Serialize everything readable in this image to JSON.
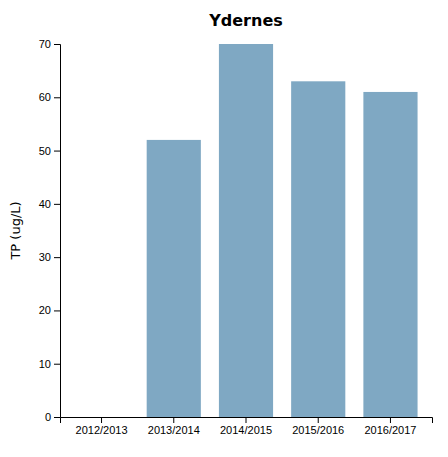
{
  "chart_data": {
    "type": "bar",
    "title": "Ydernes",
    "categories": [
      "2012/2013",
      "2013/2014",
      "2014/2015",
      "2015/2016",
      "2016/2017"
    ],
    "values": [
      0,
      52,
      70,
      63,
      61
    ],
    "color": "#7fa8c3",
    "ylabel": "TP (ug/L)",
    "ylim": [
      0,
      70
    ],
    "yticks": [
      0,
      10,
      20,
      30,
      40,
      50,
      60,
      70
    ],
    "grid": false
  }
}
